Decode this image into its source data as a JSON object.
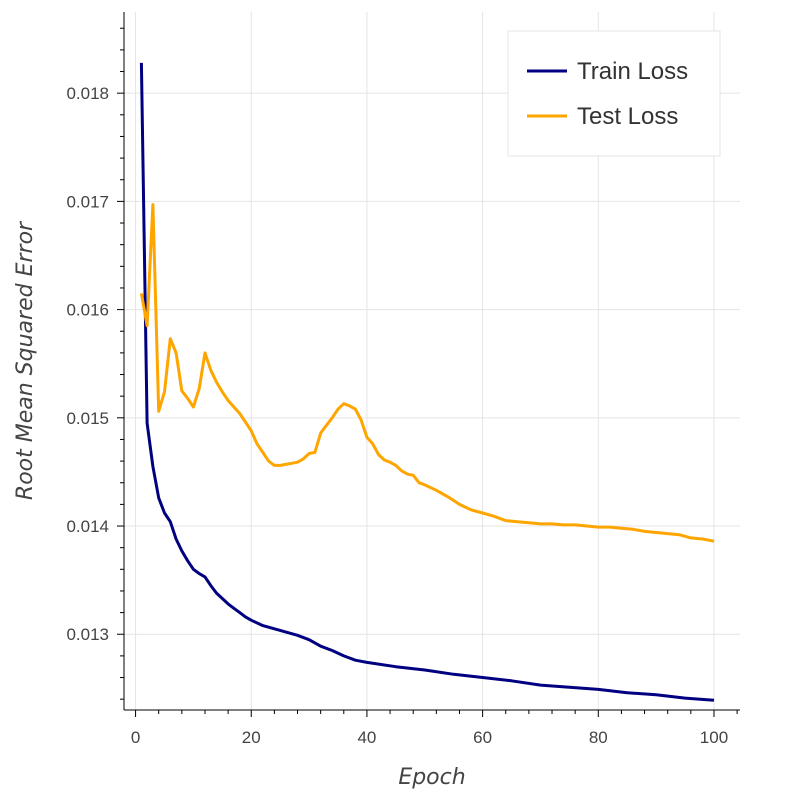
{
  "chart_data": {
    "type": "line",
    "title": "",
    "xlabel": "Epoch",
    "ylabel": "Root Mean Squared Error",
    "xlim": [
      -2,
      104.5
    ],
    "ylim": [
      0.0123,
      0.01875
    ],
    "x_ticks": [
      0,
      20,
      40,
      60,
      80,
      100
    ],
    "y_ticks": [
      0.013,
      0.014,
      0.015,
      0.016,
      0.017,
      0.018
    ],
    "x_tick_labels": [
      "0",
      "20",
      "40",
      "60",
      "80",
      "100"
    ],
    "y_tick_labels": [
      "0.013",
      "0.014",
      "0.015",
      "0.016",
      "0.017",
      "0.018"
    ],
    "grid": true,
    "legend_position": "top-right",
    "series": [
      {
        "name": "Train Loss",
        "color": "#000080",
        "x": [
          1,
          2,
          3,
          4,
          5,
          6,
          7,
          8,
          9,
          10,
          11,
          12,
          13,
          14,
          15,
          16,
          17,
          18,
          19,
          20,
          22,
          24,
          26,
          28,
          30,
          32,
          34,
          36,
          38,
          40,
          45,
          50,
          55,
          60,
          65,
          70,
          75,
          80,
          85,
          90,
          95,
          100
        ],
        "y": [
          0.01828,
          0.01495,
          0.01455,
          0.01426,
          0.01412,
          0.01404,
          0.01388,
          0.01377,
          0.01368,
          0.0136,
          0.01356,
          0.01353,
          0.01345,
          0.01338,
          0.01333,
          0.01328,
          0.01324,
          0.0132,
          0.01316,
          0.01313,
          0.01308,
          0.01305,
          0.01302,
          0.01299,
          0.01295,
          0.01289,
          0.01285,
          0.0128,
          0.01276,
          0.01274,
          0.0127,
          0.01267,
          0.01263,
          0.0126,
          0.01257,
          0.01253,
          0.01251,
          0.01249,
          0.01246,
          0.01244,
          0.01241,
          0.01239
        ]
      },
      {
        "name": "Test Loss",
        "color": "#ffa500",
        "x": [
          1,
          2,
          3,
          4,
          5,
          6,
          7,
          8,
          9,
          10,
          11,
          12,
          13,
          14,
          15,
          16,
          17,
          18,
          19,
          20,
          21,
          22,
          23,
          24,
          25,
          26,
          27,
          28,
          29,
          30,
          31,
          32,
          33,
          34,
          35,
          36,
          37,
          38,
          39,
          40,
          41,
          42,
          43,
          44,
          45,
          46,
          47,
          48,
          49,
          50,
          52,
          54,
          56,
          58,
          60,
          62,
          64,
          66,
          68,
          70,
          72,
          74,
          76,
          78,
          80,
          82,
          84,
          86,
          88,
          90,
          92,
          94,
          96,
          98,
          100
        ],
        "y": [
          0.01615,
          0.01585,
          0.01697,
          0.01506,
          0.01524,
          0.01573,
          0.0156,
          0.01525,
          0.01518,
          0.0151,
          0.01527,
          0.0156,
          0.01544,
          0.01533,
          0.01524,
          0.01516,
          0.0151,
          0.01504,
          0.01496,
          0.01488,
          0.01476,
          0.01468,
          0.0146,
          0.01456,
          0.01456,
          0.01457,
          0.01458,
          0.01459,
          0.01462,
          0.01467,
          0.01468,
          0.01486,
          0.01493,
          0.015,
          0.01508,
          0.01513,
          0.01511,
          0.01508,
          0.01498,
          0.01482,
          0.01476,
          0.01466,
          0.01461,
          0.01459,
          0.01456,
          0.01451,
          0.01448,
          0.01447,
          0.0144,
          0.01438,
          0.01433,
          0.01427,
          0.0142,
          0.01415,
          0.01412,
          0.01409,
          0.01405,
          0.01404,
          0.01403,
          0.01402,
          0.01402,
          0.01401,
          0.01401,
          0.014,
          0.01399,
          0.01399,
          0.01398,
          0.01397,
          0.01395,
          0.01394,
          0.01393,
          0.01392,
          0.01389,
          0.01388,
          0.01386
        ]
      }
    ]
  }
}
